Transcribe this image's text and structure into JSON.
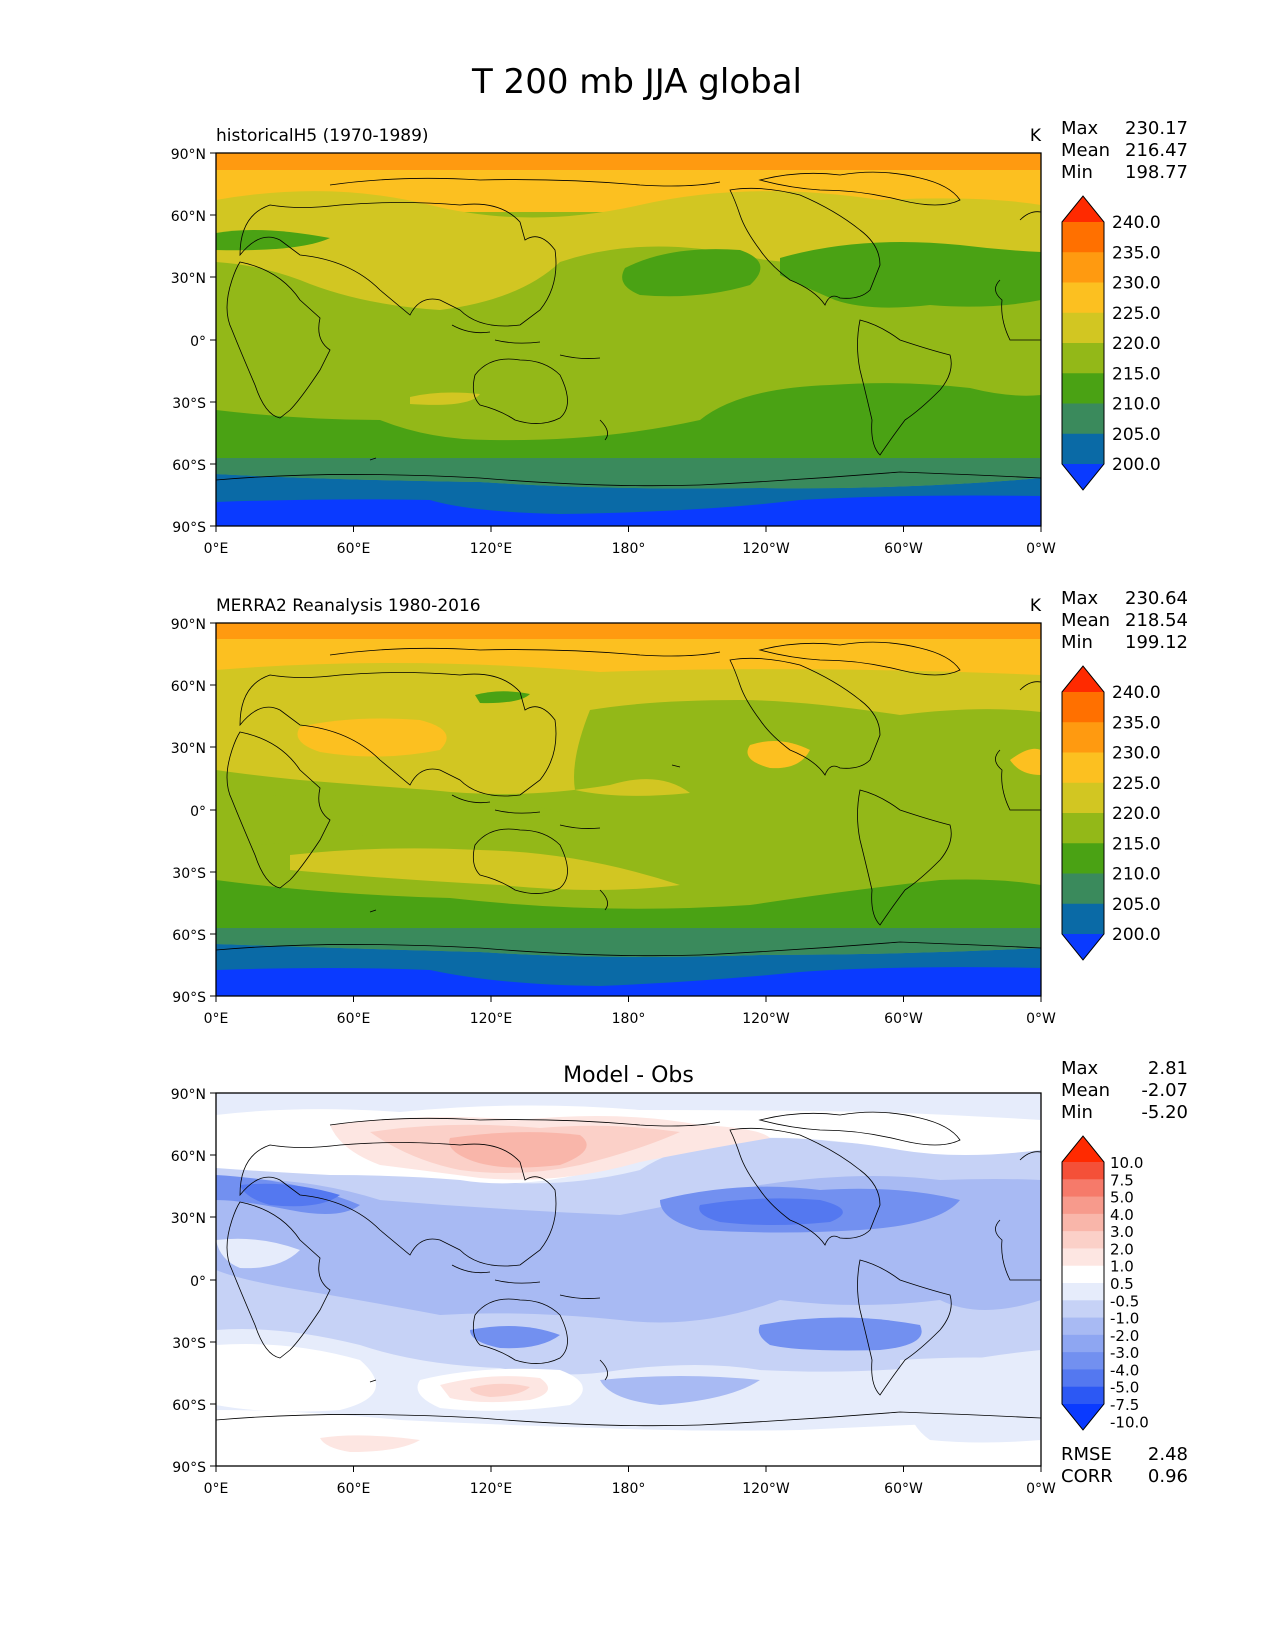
{
  "suptitle": "T 200 mb JJA global",
  "lon_ticks": [
    "0°E",
    "60°E",
    "120°E",
    "180°",
    "120°W",
    "60°W",
    "0°W"
  ],
  "lat_ticks": [
    "90°N",
    "60°N",
    "30°N",
    "0°",
    "30°S",
    "60°S",
    "90°S"
  ],
  "panels": [
    {
      "title": "historicalH5 (1970-1989)",
      "units": "K",
      "stats": {
        "max_label": "Max",
        "max": "230.17",
        "mean_label": "Mean",
        "mean": "216.47",
        "min_label": "Min",
        "min": "198.77"
      }
    },
    {
      "title": "MERRA2 Reanalysis 1980-2016",
      "units": "K",
      "stats": {
        "max_label": "Max",
        "max": "230.64",
        "mean_label": "Mean",
        "mean": "218.54",
        "min_label": "Min",
        "min": "199.12"
      }
    },
    {
      "title": "Model - Obs",
      "units": "",
      "stats": {
        "max_label": "Max",
        "max": "2.81",
        "mean_label": "Mean",
        "mean": "-2.07",
        "min_label": "Min",
        "min": "-5.20"
      },
      "extra": {
        "rmse_label": "RMSE",
        "rmse": "2.48",
        "corr_label": "CORR",
        "corr": "0.96"
      }
    }
  ],
  "colorbar_abs": {
    "labels": [
      "240.0",
      "235.0",
      "230.0",
      "225.0",
      "220.0",
      "215.0",
      "210.0",
      "205.0",
      "200.0"
    ],
    "colors": [
      "#ff2a00",
      "#ff7000",
      "#ff9a10",
      "#fcc020",
      "#d2c622",
      "#93b818",
      "#4aa214",
      "#3a8a5c",
      "#0a6aa6",
      "#0a3aff"
    ]
  },
  "colorbar_diff": {
    "labels": [
      "10.0",
      "7.5",
      "5.0",
      "4.0",
      "3.0",
      "2.0",
      "1.0",
      "0.5",
      "-0.5",
      "-1.0",
      "-2.0",
      "-3.0",
      "-4.0",
      "-5.0",
      "-7.5",
      "-10.0"
    ],
    "colors": [
      "#ff2a00",
      "#f45038",
      "#f67a6a",
      "#f79a8c",
      "#f9b6aa",
      "#fbd0c8",
      "#fde6e2",
      "#ffffff",
      "#e6ecfb",
      "#c6d2f6",
      "#a8baf3",
      "#8ea6f2",
      "#7290f0",
      "#5478f0",
      "#2c58f4",
      "#0a3aff"
    ]
  },
  "chart_data": {
    "type": "heatmap",
    "title": "T 200 mb JJA global",
    "x_range": [
      0,
      360
    ],
    "y_range": [
      -90,
      90
    ],
    "panels": [
      {
        "name": "historicalH5 (1970-1989)",
        "units": "K",
        "max": 230.17,
        "mean": 216.47,
        "min": 198.77,
        "levels": [
          200,
          205,
          210,
          215,
          220,
          225,
          230,
          235,
          240
        ]
      },
      {
        "name": "MERRA2 Reanalysis 1980-2016",
        "units": "K",
        "max": 230.64,
        "mean": 218.54,
        "min": 199.12,
        "levels": [
          200,
          205,
          210,
          215,
          220,
          225,
          230,
          235,
          240
        ]
      },
      {
        "name": "Model - Obs",
        "max": 2.81,
        "mean": -2.07,
        "min": -5.2,
        "rmse": 2.48,
        "corr": 0.96,
        "levels": [
          -10,
          -7.5,
          -5,
          -4,
          -3,
          -2,
          -1,
          -0.5,
          0.5,
          1,
          2,
          3,
          4,
          5,
          7.5,
          10
        ]
      }
    ]
  }
}
